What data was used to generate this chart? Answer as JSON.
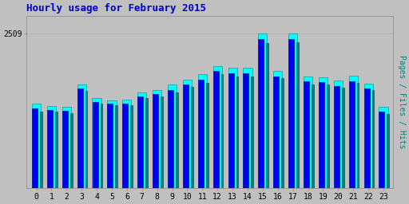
{
  "title": "Hourly usage for February 2015",
  "hours": [
    0,
    1,
    2,
    3,
    4,
    5,
    6,
    7,
    8,
    9,
    10,
    11,
    12,
    13,
    14,
    15,
    16,
    17,
    18,
    19,
    20,
    21,
    22,
    23
  ],
  "hits": [
    1380,
    1340,
    1320,
    1680,
    1460,
    1430,
    1440,
    1560,
    1600,
    1680,
    1760,
    1850,
    1980,
    1950,
    1950,
    2509,
    1900,
    2509,
    1820,
    1800,
    1750,
    1830,
    1700,
    1320
  ],
  "files": [
    1300,
    1270,
    1260,
    1620,
    1400,
    1370,
    1380,
    1490,
    1530,
    1600,
    1680,
    1760,
    1900,
    1870,
    1870,
    2420,
    1820,
    2420,
    1730,
    1720,
    1660,
    1740,
    1620,
    1250
  ],
  "pages": [
    1250,
    1250,
    1220,
    1580,
    1370,
    1350,
    1350,
    1460,
    1490,
    1560,
    1640,
    1710,
    1850,
    1820,
    1820,
    2360,
    1790,
    2370,
    1690,
    1680,
    1630,
    1710,
    1590,
    1210
  ],
  "bar_color_hits": "#00ffff",
  "bar_color_files": "#0000ee",
  "bar_color_pages": "#008080",
  "bar_edge_hits": "#008888",
  "bar_edge_files": "#000088",
  "bar_edge_pages": "#004444",
  "background_color": "#c0c0c0",
  "plot_bg_color": "#c0c0c0",
  "title_color": "#0000cc",
  "ylabel_color": "#008080",
  "ylabel": "Pages / Files / Hits",
  "ytick_label": "2509",
  "ylim_max": 2800,
  "grid_color": "#b0b0b0",
  "title_fontsize": 9,
  "tick_fontsize": 7,
  "ylabel_fontsize": 7
}
